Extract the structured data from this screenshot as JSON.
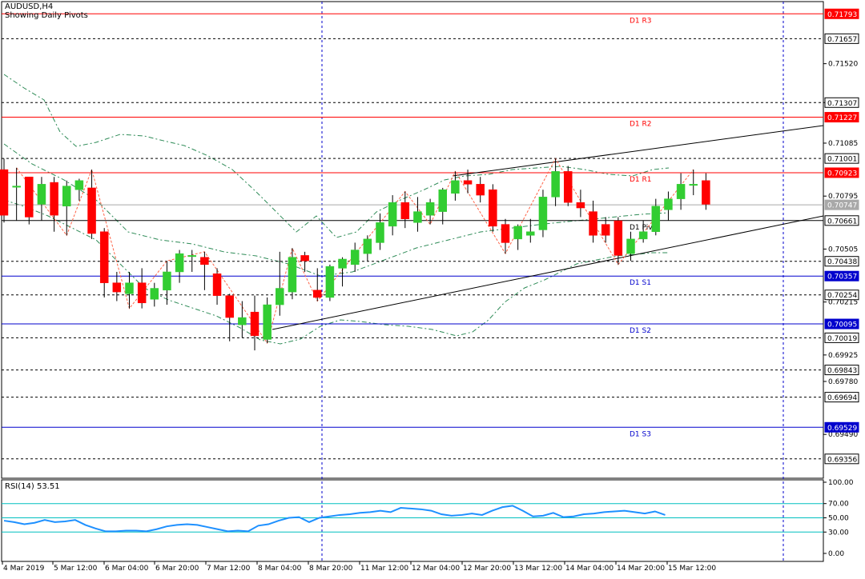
{
  "chart_header": {
    "symbol": "AUDUSD,H4",
    "subtitle": "Showing Daily Pivots"
  },
  "indicator": {
    "title": "RSI(14) 53.51",
    "value": 53.51,
    "levels": [
      70,
      50,
      30
    ],
    "scale_labels": [
      "100.00",
      "70.00",
      "50.00",
      "30.00",
      "0.00"
    ]
  },
  "colors": {
    "bull_candle": "#32cd32",
    "bear_candle": "#ff0000",
    "resistance_line": "#ff0000",
    "support_line": "#0000cd",
    "pivot_line": "#000000",
    "rsi_line": "#1e90ff",
    "rsi_levels": "#00bfbf",
    "envelope": "#2e8b57",
    "zigzag": "#ff6347",
    "active_price_label_bg": "#ffffff",
    "red_label_bg": "#ff0000",
    "blue_label_bg": "#0000cd"
  },
  "chart_data": {
    "type": "candlestick",
    "symbol": "AUDUSD",
    "timeframe": "H4",
    "ylim": [
      0.6925,
      0.7186
    ],
    "price_axis_ticks": [
      "0.71520",
      "0.71307",
      "0.71085",
      "0.70795",
      "0.70505",
      "0.70215",
      "0.69925",
      "0.69780",
      "0.69490"
    ],
    "time_axis_labels": [
      "4 Mar 2019",
      "5 Mar 12:00",
      "6 Mar 04:00",
      "6 Mar 20:00",
      "7 Mar 12:00",
      "8 Mar 04:00",
      "8 Mar 20:00",
      "11 Mar 12:00",
      "12 Mar 04:00",
      "12 Mar 20:00",
      "13 Mar 12:00",
      "14 Mar 04:00",
      "14 Mar 20:00",
      "15 Mar 12:00"
    ],
    "pivot_levels": [
      {
        "name": "D1 R3",
        "price": 0.71793,
        "label": "0.71793",
        "kind": "resistance"
      },
      {
        "name": "D1 R2",
        "price": 0.71227,
        "label": "0.71227",
        "kind": "resistance"
      },
      {
        "name": "D1 R1",
        "price": 0.70923,
        "label": "0.70923",
        "kind": "resistance"
      },
      {
        "name": "D1 Pivot",
        "price": 0.70661,
        "label": "0.70661",
        "kind": "pivot"
      },
      {
        "name": "D1 S1",
        "price": 0.70357,
        "label": "0.70357",
        "kind": "support"
      },
      {
        "name": "D1 S2",
        "price": 0.70095,
        "label": "0.70095",
        "kind": "support"
      },
      {
        "name": "D1 S3",
        "price": 0.69529,
        "label": "0.69529",
        "kind": "support"
      }
    ],
    "dashed_levels": [
      {
        "price": 0.71657,
        "label": "0.71657"
      },
      {
        "price": 0.71307,
        "label": "0.71307"
      },
      {
        "price": 0.71001,
        "label": "0.71001"
      },
      {
        "price": 0.70438,
        "label": "0.70438"
      },
      {
        "price": 0.70254,
        "label": "0.70254"
      },
      {
        "price": 0.70019,
        "label": "0.70019"
      },
      {
        "price": 0.69843,
        "label": "0.69843"
      },
      {
        "price": 0.69694,
        "label": "0.69694"
      },
      {
        "price": 0.69356,
        "label": "0.69356"
      }
    ],
    "current_price": {
      "price": 0.70747,
      "label": "0.70747"
    },
    "candles": [
      {
        "o": 0.7094,
        "h": 0.71,
        "l": 0.7065,
        "c": 0.7069
      },
      {
        "o": 0.7085,
        "h": 0.7095,
        "l": 0.7066,
        "c": 0.7085
      },
      {
        "o": 0.709,
        "h": 0.709,
        "l": 0.7064,
        "c": 0.7068
      },
      {
        "o": 0.7075,
        "h": 0.709,
        "l": 0.7066,
        "c": 0.7086
      },
      {
        "o": 0.7087,
        "h": 0.709,
        "l": 0.706,
        "c": 0.7069
      },
      {
        "o": 0.7074,
        "h": 0.7088,
        "l": 0.7058,
        "c": 0.7085
      },
      {
        "o": 0.7083,
        "h": 0.7089,
        "l": 0.7077,
        "c": 0.7088
      },
      {
        "o": 0.7084,
        "h": 0.7094,
        "l": 0.7056,
        "c": 0.7059
      },
      {
        "o": 0.706,
        "h": 0.7062,
        "l": 0.7024,
        "c": 0.7032
      },
      {
        "o": 0.7032,
        "h": 0.7038,
        "l": 0.7022,
        "c": 0.7027
      },
      {
        "o": 0.7026,
        "h": 0.7038,
        "l": 0.7018,
        "c": 0.7032
      },
      {
        "o": 0.7032,
        "h": 0.704,
        "l": 0.7018,
        "c": 0.7021
      },
      {
        "o": 0.7023,
        "h": 0.7032,
        "l": 0.7019,
        "c": 0.7029
      },
      {
        "o": 0.7028,
        "h": 0.7044,
        "l": 0.702,
        "c": 0.7038
      },
      {
        "o": 0.7038,
        "h": 0.705,
        "l": 0.7032,
        "c": 0.7048
      },
      {
        "o": 0.7047,
        "h": 0.705,
        "l": 0.7038,
        "c": 0.7047
      },
      {
        "o": 0.7046,
        "h": 0.7049,
        "l": 0.7028,
        "c": 0.7042
      },
      {
        "o": 0.7037,
        "h": 0.704,
        "l": 0.702,
        "c": 0.7025
      },
      {
        "o": 0.7025,
        "h": 0.7026,
        "l": 0.7,
        "c": 0.7013
      },
      {
        "o": 0.7009,
        "h": 0.7022,
        "l": 0.7002,
        "c": 0.7013
      },
      {
        "o": 0.7016,
        "h": 0.7025,
        "l": 0.6995,
        "c": 0.7003
      },
      {
        "o": 0.7001,
        "h": 0.7024,
        "l": 0.6999,
        "c": 0.702
      },
      {
        "o": 0.702,
        "h": 0.7049,
        "l": 0.7014,
        "c": 0.7029
      },
      {
        "o": 0.7027,
        "h": 0.7051,
        "l": 0.7023,
        "c": 0.7046
      },
      {
        "o": 0.7047,
        "h": 0.7049,
        "l": 0.7038,
        "c": 0.7044
      },
      {
        "o": 0.7028,
        "h": 0.704,
        "l": 0.7022,
        "c": 0.7024
      },
      {
        "o": 0.7024,
        "h": 0.7042,
        "l": 0.7022,
        "c": 0.7041
      },
      {
        "o": 0.704,
        "h": 0.7046,
        "l": 0.703,
        "c": 0.7045
      },
      {
        "o": 0.7042,
        "h": 0.7054,
        "l": 0.7038,
        "c": 0.705
      },
      {
        "o": 0.7048,
        "h": 0.7058,
        "l": 0.7044,
        "c": 0.7056
      },
      {
        "o": 0.7054,
        "h": 0.707,
        "l": 0.705,
        "c": 0.7065
      },
      {
        "o": 0.7063,
        "h": 0.708,
        "l": 0.7058,
        "c": 0.7076
      },
      {
        "o": 0.7076,
        "h": 0.7082,
        "l": 0.7062,
        "c": 0.7067
      },
      {
        "o": 0.7065,
        "h": 0.7079,
        "l": 0.706,
        "c": 0.7071
      },
      {
        "o": 0.7069,
        "h": 0.7078,
        "l": 0.7064,
        "c": 0.7076
      },
      {
        "o": 0.7071,
        "h": 0.7084,
        "l": 0.7064,
        "c": 0.7083
      },
      {
        "o": 0.7081,
        "h": 0.7093,
        "l": 0.7077,
        "c": 0.7088
      },
      {
        "o": 0.7088,
        "h": 0.7094,
        "l": 0.7081,
        "c": 0.7086
      },
      {
        "o": 0.7086,
        "h": 0.709,
        "l": 0.7076,
        "c": 0.708
      },
      {
        "o": 0.7083,
        "h": 0.7086,
        "l": 0.706,
        "c": 0.7063
      },
      {
        "o": 0.7064,
        "h": 0.7067,
        "l": 0.7048,
        "c": 0.7054
      },
      {
        "o": 0.7056,
        "h": 0.7064,
        "l": 0.705,
        "c": 0.7063
      },
      {
        "o": 0.7058,
        "h": 0.7067,
        "l": 0.7054,
        "c": 0.706
      },
      {
        "o": 0.7061,
        "h": 0.7083,
        "l": 0.7057,
        "c": 0.7079
      },
      {
        "o": 0.7079,
        "h": 0.71,
        "l": 0.7074,
        "c": 0.7093
      },
      {
        "o": 0.7093,
        "h": 0.7096,
        "l": 0.7074,
        "c": 0.7076
      },
      {
        "o": 0.7076,
        "h": 0.7083,
        "l": 0.7068,
        "c": 0.7073
      },
      {
        "o": 0.7071,
        "h": 0.7077,
        "l": 0.7054,
        "c": 0.7058
      },
      {
        "o": 0.7064,
        "h": 0.7068,
        "l": 0.7054,
        "c": 0.7058
      },
      {
        "o": 0.7066,
        "h": 0.7068,
        "l": 0.7042,
        "c": 0.7047
      },
      {
        "o": 0.7048,
        "h": 0.706,
        "l": 0.7044,
        "c": 0.7056
      },
      {
        "o": 0.7056,
        "h": 0.7066,
        "l": 0.7054,
        "c": 0.706
      },
      {
        "o": 0.706,
        "h": 0.7078,
        "l": 0.7058,
        "c": 0.7074
      },
      {
        "o": 0.7072,
        "h": 0.7082,
        "l": 0.7066,
        "c": 0.7078
      },
      {
        "o": 0.7078,
        "h": 0.7092,
        "l": 0.7072,
        "c": 0.7086
      },
      {
        "o": 0.7086,
        "h": 0.7094,
        "l": 0.708,
        "c": 0.7086
      },
      {
        "o": 0.7088,
        "h": 0.7092,
        "l": 0.7072,
        "c": 0.7075
      }
    ],
    "rsi_values": [
      46,
      44,
      41,
      43,
      47,
      44,
      45,
      47,
      40,
      35,
      31,
      31,
      32,
      32,
      31,
      34,
      38,
      40,
      41,
      40,
      37,
      34,
      31,
      32,
      31,
      39,
      41,
      46,
      50,
      51,
      44,
      50,
      52,
      54,
      55,
      57,
      58,
      60,
      58,
      64,
      63,
      62,
      60,
      55,
      53,
      54,
      56,
      54,
      60,
      65,
      67,
      60,
      52,
      53,
      57,
      51,
      52,
      55,
      56,
      58,
      59,
      60,
      58,
      56,
      59,
      54
    ]
  }
}
